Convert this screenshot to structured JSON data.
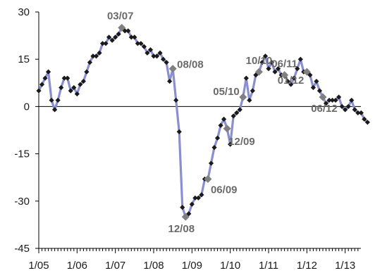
{
  "chart_data": {
    "type": "line",
    "title": "",
    "xlabel": "",
    "ylabel": "",
    "ylim": [
      -45,
      30
    ],
    "yticks": [
      30,
      15,
      0,
      -15,
      -30,
      -45
    ],
    "x_start": "1/05",
    "x_end": "1/13",
    "xtick_labels": [
      "1/05",
      "1/06",
      "1/07",
      "1/08",
      "1/09",
      "1/10",
      "1/11",
      "1/12",
      "1/13"
    ],
    "grid": false,
    "zero_line": true,
    "colors": {
      "line": "#8a8fd0",
      "marker": "#1a1a1a",
      "highlight": "#808080",
      "axis": "#000000"
    },
    "series": [
      {
        "values": [
          5,
          7,
          9,
          11,
          2,
          -1,
          2,
          6,
          9,
          9,
          5,
          6,
          4,
          7,
          8,
          11,
          14,
          16,
          16,
          17,
          20,
          20,
          22,
          21,
          22,
          23,
          25,
          24,
          24,
          22,
          22,
          20,
          20,
          19,
          17,
          18,
          16,
          16,
          17,
          15,
          14,
          8,
          12,
          2,
          -8,
          -32,
          -35,
          -34,
          -31,
          -29,
          -29,
          -28,
          -23,
          -23,
          -18,
          -13,
          -10,
          -6,
          -4,
          -7,
          -12,
          -3,
          -2,
          -1,
          3,
          9,
          2,
          5,
          10,
          11,
          14,
          16,
          12,
          14,
          11,
          12,
          10,
          10,
          8,
          7,
          9,
          12,
          15,
          11,
          11,
          10,
          6,
          8,
          5,
          3,
          1,
          2,
          2,
          2,
          3,
          0,
          -1,
          0,
          2,
          -1,
          -2,
          -2,
          -4,
          -5
        ]
      }
    ],
    "annotations": [
      {
        "label": "03/07",
        "index": 26
      },
      {
        "label": "08/08",
        "index": 42
      },
      {
        "label": "12/08",
        "index": 46
      },
      {
        "label": "06/09",
        "index": 53
      },
      {
        "label": "12/09",
        "index": 59
      },
      {
        "label": "05/10",
        "index": 64
      },
      {
        "label": "10/10",
        "index": 69
      },
      {
        "label": "06/11",
        "index": 77
      },
      {
        "label": "01/12",
        "index": 84
      },
      {
        "label": "06/12",
        "index": 89
      }
    ]
  }
}
